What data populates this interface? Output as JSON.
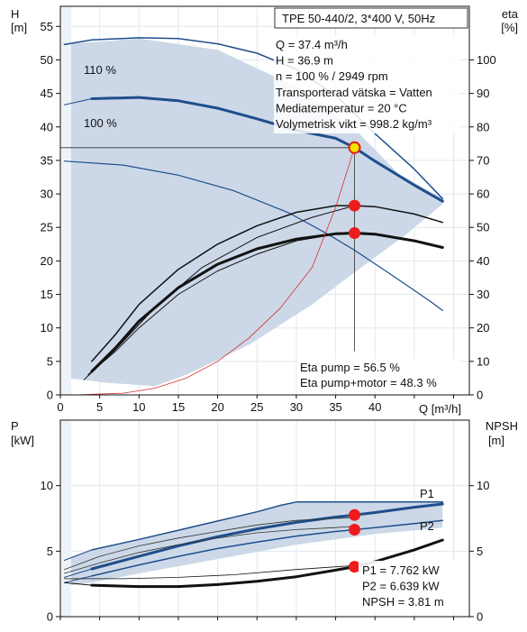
{
  "chart_data": [
    {
      "type": "line",
      "panel": "head",
      "title": "TPE 50-440/2, 3*400 V, 50Hz",
      "xlabel": "Q [m³/h]",
      "ylabel_left": "H",
      "ylabel_left_unit": "[m]",
      "ylabel_right": "eta",
      "ylabel_right_unit": "[%]",
      "xlim": [
        0,
        52
      ],
      "ylim": [
        0,
        58
      ],
      "xticks": [
        0,
        5,
        10,
        15,
        20,
        25,
        30,
        35,
        40
      ],
      "yticks": [
        0,
        5,
        10,
        15,
        20,
        25,
        30,
        35,
        40,
        45,
        50,
        55
      ],
      "right_ylim": [
        0,
        116
      ],
      "right_yticks": [
        0,
        10,
        20,
        30,
        40,
        50,
        60,
        70,
        80,
        90,
        100
      ],
      "grid": true,
      "info_lines": [
        "Q = 37.4 m³/h",
        "H = 36.9 m",
        "n = 100 % / 2949 rpm",
        "Transporterad vätska = Vatten",
        "Mediatemperatur = 20 °C",
        "Volymetrisk vikt = 998.2 kg/m³"
      ],
      "eta_lines": [
        "Eta pump = 56.5 %",
        "Eta pump+motor = 48.3 %"
      ],
      "curve_labels": [
        "110 %",
        "100 %"
      ],
      "operating_area": {
        "upper": [
          [
            0,
            52.3
          ],
          [
            10,
            53.2
          ],
          [
            20,
            51.5
          ],
          [
            30,
            46
          ],
          [
            38,
            39
          ],
          [
            43,
            33
          ],
          [
            48.6,
            29.3
          ]
        ],
        "lower": [
          [
            48.6,
            28.5
          ],
          [
            44,
            24
          ],
          [
            38,
            18.8
          ],
          [
            32,
            13.5
          ],
          [
            24,
            7.5
          ],
          [
            16,
            3
          ],
          [
            12,
            1.3
          ],
          [
            6,
            1.8
          ],
          [
            2,
            2.4
          ],
          [
            0,
            2.4
          ]
        ]
      },
      "series": [
        {
          "name": "110 %",
          "axis": "left",
          "color": "#1f4e8c",
          "width": 1.5,
          "points": [
            [
              0.5,
              52.3
            ],
            [
              4,
              53.0
            ],
            [
              10,
              53.3
            ],
            [
              15,
              53.2
            ],
            [
              20,
              52.4
            ],
            [
              25,
              51
            ],
            [
              30,
              48.6
            ],
            [
              35,
              44.7
            ],
            [
              40,
              39
            ],
            [
              45,
              33.7
            ],
            [
              48.6,
              29.3
            ]
          ]
        },
        {
          "name": "100 %",
          "axis": "left",
          "color": "#1f4e8c",
          "width": 3,
          "points": [
            [
              4,
              44.2
            ],
            [
              10,
              44.4
            ],
            [
              15,
              43.9
            ],
            [
              20,
              42.8
            ],
            [
              25,
              41.2
            ],
            [
              30,
              39.5
            ],
            [
              35,
              38.3
            ],
            [
              37.4,
              36.9
            ],
            [
              40,
              34.9
            ],
            [
              45,
              31.3
            ],
            [
              48.6,
              28.9
            ]
          ]
        },
        {
          "name": "",
          "axis": "left",
          "color": "#1f4e8c",
          "width": 1,
          "points": [
            [
              0.5,
              43.3
            ],
            [
              4,
              44.2
            ]
          ]
        },
        {
          "name": "",
          "axis": "left",
          "color": "#1f4e8c",
          "width": 1.2,
          "points": [
            [
              0.5,
              34.9
            ],
            [
              8,
              34.3
            ],
            [
              15,
              32.8
            ],
            [
              22,
              30.5
            ],
            [
              29,
              27.2
            ],
            [
              34,
              24
            ],
            [
              37.4,
              21.6
            ],
            [
              42,
              18
            ],
            [
              47,
              14
            ],
            [
              48.6,
              12.6
            ]
          ]
        },
        {
          "name": "",
          "axis": "right",
          "color": "#111111",
          "width": 1.5,
          "points": [
            [
              4,
              10
            ],
            [
              7,
              18
            ],
            [
              10,
              27
            ],
            [
              15,
              37.5
            ],
            [
              20,
              45
            ],
            [
              25,
              50.5
            ],
            [
              30,
              54.5
            ],
            [
              35,
              56.5
            ],
            [
              37.4,
              56.5
            ],
            [
              40,
              56.2
            ],
            [
              45,
              54
            ],
            [
              48.6,
              51.5
            ]
          ]
        },
        {
          "name": "",
          "axis": "right",
          "color": "#111111",
          "width": 3,
          "points": [
            [
              4,
              7
            ],
            [
              7,
              14
            ],
            [
              10,
              22
            ],
            [
              15,
              32
            ],
            [
              20,
              39
            ],
            [
              25,
              43.6
            ],
            [
              30,
              46.5
            ],
            [
              35,
              48.1
            ],
            [
              37.4,
              48.3
            ],
            [
              40,
              48
            ],
            [
              45,
              46
            ],
            [
              48.6,
              44
            ]
          ]
        },
        {
          "name": "",
          "axis": "right",
          "color": "#111111",
          "width": 1,
          "points": [
            [
              3.5,
              6
            ],
            [
              7,
              13
            ],
            [
              10,
              20
            ],
            [
              15,
              30
            ],
            [
              20,
              37
            ],
            [
              25,
              42
            ],
            [
              30,
              46
            ],
            [
              35,
              48
            ],
            [
              37.4,
              48.3
            ]
          ]
        },
        {
          "name": "",
          "axis": "right",
          "color": "#111111",
          "width": 1,
          "points": [
            [
              3,
              4.5
            ],
            [
              7,
              13.5
            ],
            [
              12,
              26
            ],
            [
              18,
              38
            ],
            [
              25,
              47
            ],
            [
              32,
              53
            ],
            [
              37.4,
              56.5
            ]
          ]
        },
        {
          "name": "",
          "axis": "right",
          "color": "#d93030",
          "width": 0.8,
          "points": [
            [
              2,
              0
            ],
            [
              8,
              0.5
            ],
            [
              12,
              2
            ],
            [
              16,
              5
            ],
            [
              20,
              10
            ],
            [
              24,
              17
            ],
            [
              28,
              26
            ],
            [
              32,
              38
            ],
            [
              35,
              56
            ],
            [
              37.4,
              73.8
            ]
          ]
        }
      ],
      "operating_points": [
        {
          "x": 37.4,
          "y": 36.9,
          "axis": "left",
          "style": "yellow"
        },
        {
          "x": 37.4,
          "y": 56.5,
          "axis": "right",
          "style": "red"
        },
        {
          "x": 37.4,
          "y": 48.3,
          "axis": "right",
          "style": "red"
        }
      ]
    },
    {
      "type": "line",
      "panel": "power",
      "xlabel": "",
      "ylabel_left": "P",
      "ylabel_left_unit": "[kW]",
      "ylabel_right": "NPSH",
      "ylabel_right_unit": "[m]",
      "xlim": [
        0,
        52
      ],
      "ylim": [
        0,
        15
      ],
      "yticks": [
        0,
        5,
        10
      ],
      "right_yticks": [
        0,
        5,
        10
      ],
      "grid": true,
      "info_lines": [
        "P1 = 7.762 kW",
        "P2 = 6.639 kW",
        "NPSH = 3.81 m"
      ],
      "curve_labels": [
        "P1",
        "P2"
      ],
      "series": [
        {
          "name": "",
          "axis": "left",
          "color": "#1f4e8c",
          "width": 1.5,
          "points": [
            [
              4,
              5.1
            ],
            [
              10,
              5.9
            ],
            [
              15,
              6.6
            ],
            [
              20,
              7.3
            ],
            [
              25,
              8.0
            ],
            [
              28,
              8.5
            ],
            [
              30,
              8.75
            ],
            [
              35,
              8.75
            ],
            [
              40,
              8.75
            ],
            [
              48.6,
              8.75
            ]
          ]
        },
        {
          "name": "P1",
          "axis": "left",
          "color": "#1f4e8c",
          "width": 3,
          "points": [
            [
              4,
              3.65
            ],
            [
              10,
              4.6
            ],
            [
              15,
              5.4
            ],
            [
              20,
              6.1
            ],
            [
              25,
              6.7
            ],
            [
              30,
              7.2
            ],
            [
              35,
              7.6
            ],
            [
              37.4,
              7.762
            ],
            [
              40,
              7.95
            ],
            [
              45,
              8.35
            ],
            [
              48.6,
              8.6
            ]
          ]
        },
        {
          "name": "P2",
          "axis": "left",
          "color": "#1f4e8c",
          "width": 1.5,
          "points": [
            [
              4,
              3.1
            ],
            [
              10,
              3.95
            ],
            [
              15,
              4.6
            ],
            [
              20,
              5.2
            ],
            [
              25,
              5.7
            ],
            [
              30,
              6.15
            ],
            [
              35,
              6.5
            ],
            [
              37.4,
              6.639
            ],
            [
              40,
              6.8
            ],
            [
              45,
              7.1
            ],
            [
              48.6,
              7.35
            ]
          ]
        },
        {
          "name": "",
          "axis": "left",
          "color": "#1f4e8c",
          "width": 1,
          "points": [
            [
              0.5,
              4.3
            ],
            [
              4,
              5.1
            ]
          ]
        },
        {
          "name": "",
          "axis": "left",
          "color": "#1f4e8c",
          "width": 1,
          "points": [
            [
              0.5,
              3.0
            ],
            [
              4,
              3.65
            ]
          ]
        },
        {
          "name": "",
          "axis": "left",
          "color": "#1f4e8c",
          "width": 1,
          "points": [
            [
              0.5,
              2.6
            ],
            [
              4,
              3.1
            ]
          ]
        },
        {
          "name": "",
          "axis": "left",
          "color": "#333333",
          "width": 0.8,
          "points": [
            [
              0.5,
              3.6
            ],
            [
              5,
              4.6
            ],
            [
              10,
              5.4
            ],
            [
              15,
              6.0
            ],
            [
              20,
              6.5
            ],
            [
              25,
              7.0
            ],
            [
              30,
              7.35
            ],
            [
              35,
              7.5
            ],
            [
              37.4,
              7.55
            ]
          ]
        },
        {
          "name": "",
          "axis": "left",
          "color": "#333333",
          "width": 0.8,
          "points": [
            [
              0.5,
              3.3
            ],
            [
              5,
              4.1
            ],
            [
              10,
              4.9
            ],
            [
              15,
              5.5
            ],
            [
              20,
              6.0
            ],
            [
              25,
              6.4
            ],
            [
              30,
              6.65
            ],
            [
              35,
              6.8
            ],
            [
              37.4,
              6.9
            ]
          ]
        },
        {
          "name": "NPSH",
          "axis": "left",
          "color": "#111111",
          "width": 3,
          "points": [
            [
              4,
              2.4
            ],
            [
              10,
              2.3
            ],
            [
              15,
              2.3
            ],
            [
              20,
              2.45
            ],
            [
              25,
              2.7
            ],
            [
              30,
              3.05
            ],
            [
              35,
              3.55
            ],
            [
              37.4,
              3.81
            ],
            [
              40,
              4.2
            ],
            [
              45,
              5.1
            ],
            [
              48.6,
              5.85
            ]
          ]
        },
        {
          "name": "",
          "axis": "left",
          "color": "#111111",
          "width": 1,
          "points": [
            [
              0.5,
              2.6
            ],
            [
              4,
              2.4
            ]
          ]
        },
        {
          "name": "",
          "axis": "left",
          "color": "#111111",
          "width": 0.8,
          "points": [
            [
              0.5,
              2.9
            ],
            [
              8,
              2.9
            ],
            [
              15,
              3.0
            ],
            [
              22,
              3.2
            ],
            [
              30,
              3.6
            ],
            [
              37.4,
              3.9
            ]
          ]
        }
      ],
      "operating_area": {
        "upper": [
          [
            0,
            4.3
          ],
          [
            4,
            5.1
          ],
          [
            10,
            5.9
          ],
          [
            20,
            7.3
          ],
          [
            28,
            8.5
          ],
          [
            30,
            8.75
          ],
          [
            48.6,
            8.75
          ]
        ],
        "lower": [
          [
            48.6,
            6.8
          ],
          [
            40,
            6.3
          ],
          [
            30,
            5.5
          ],
          [
            20,
            4.4
          ],
          [
            10,
            3.3
          ],
          [
            4,
            2.6
          ],
          [
            0,
            2.3
          ]
        ]
      },
      "operating_points": [
        {
          "x": 37.4,
          "y": 7.762,
          "axis": "left",
          "style": "red"
        },
        {
          "x": 37.4,
          "y": 6.639,
          "axis": "left",
          "style": "red"
        },
        {
          "x": 37.4,
          "y": 3.81,
          "axis": "left",
          "style": "red"
        }
      ]
    }
  ]
}
